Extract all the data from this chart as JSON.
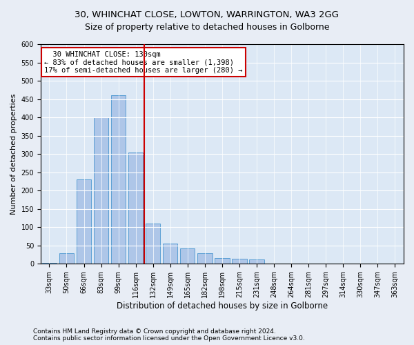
{
  "title1": "30, WHINCHAT CLOSE, LOWTON, WARRINGTON, WA3 2GG",
  "title2": "Size of property relative to detached houses in Golborne",
  "xlabel": "Distribution of detached houses by size in Golborne",
  "ylabel": "Number of detached properties",
  "categories": [
    "33sqm",
    "50sqm",
    "66sqm",
    "83sqm",
    "99sqm",
    "116sqm",
    "132sqm",
    "149sqm",
    "165sqm",
    "182sqm",
    "198sqm",
    "215sqm",
    "231sqm",
    "248sqm",
    "264sqm",
    "281sqm",
    "297sqm",
    "314sqm",
    "330sqm",
    "347sqm",
    "363sqm"
  ],
  "values": [
    2,
    28,
    230,
    400,
    460,
    305,
    110,
    55,
    42,
    28,
    15,
    14,
    12,
    1,
    0,
    0,
    0,
    1,
    0,
    0,
    0
  ],
  "bar_color": "#aec6e8",
  "bar_edge_color": "#5a9fd4",
  "vline_color": "#cc0000",
  "annotation_text": "  30 WHINCHAT CLOSE: 130sqm\n← 83% of detached houses are smaller (1,398)\n17% of semi-detached houses are larger (280) →",
  "annotation_box_color": "#ffffff",
  "annotation_box_edge": "#cc0000",
  "ylim": [
    0,
    600
  ],
  "yticks": [
    0,
    50,
    100,
    150,
    200,
    250,
    300,
    350,
    400,
    450,
    500,
    550,
    600
  ],
  "bg_color": "#e8edf5",
  "plot_bg_color": "#dce8f5",
  "footer1": "Contains HM Land Registry data © Crown copyright and database right 2024.",
  "footer2": "Contains public sector information licensed under the Open Government Licence v3.0.",
  "title1_fontsize": 9.5,
  "title2_fontsize": 9,
  "xlabel_fontsize": 8.5,
  "ylabel_fontsize": 8,
  "tick_fontsize": 7,
  "annotation_fontsize": 7.5,
  "footer_fontsize": 6.5
}
